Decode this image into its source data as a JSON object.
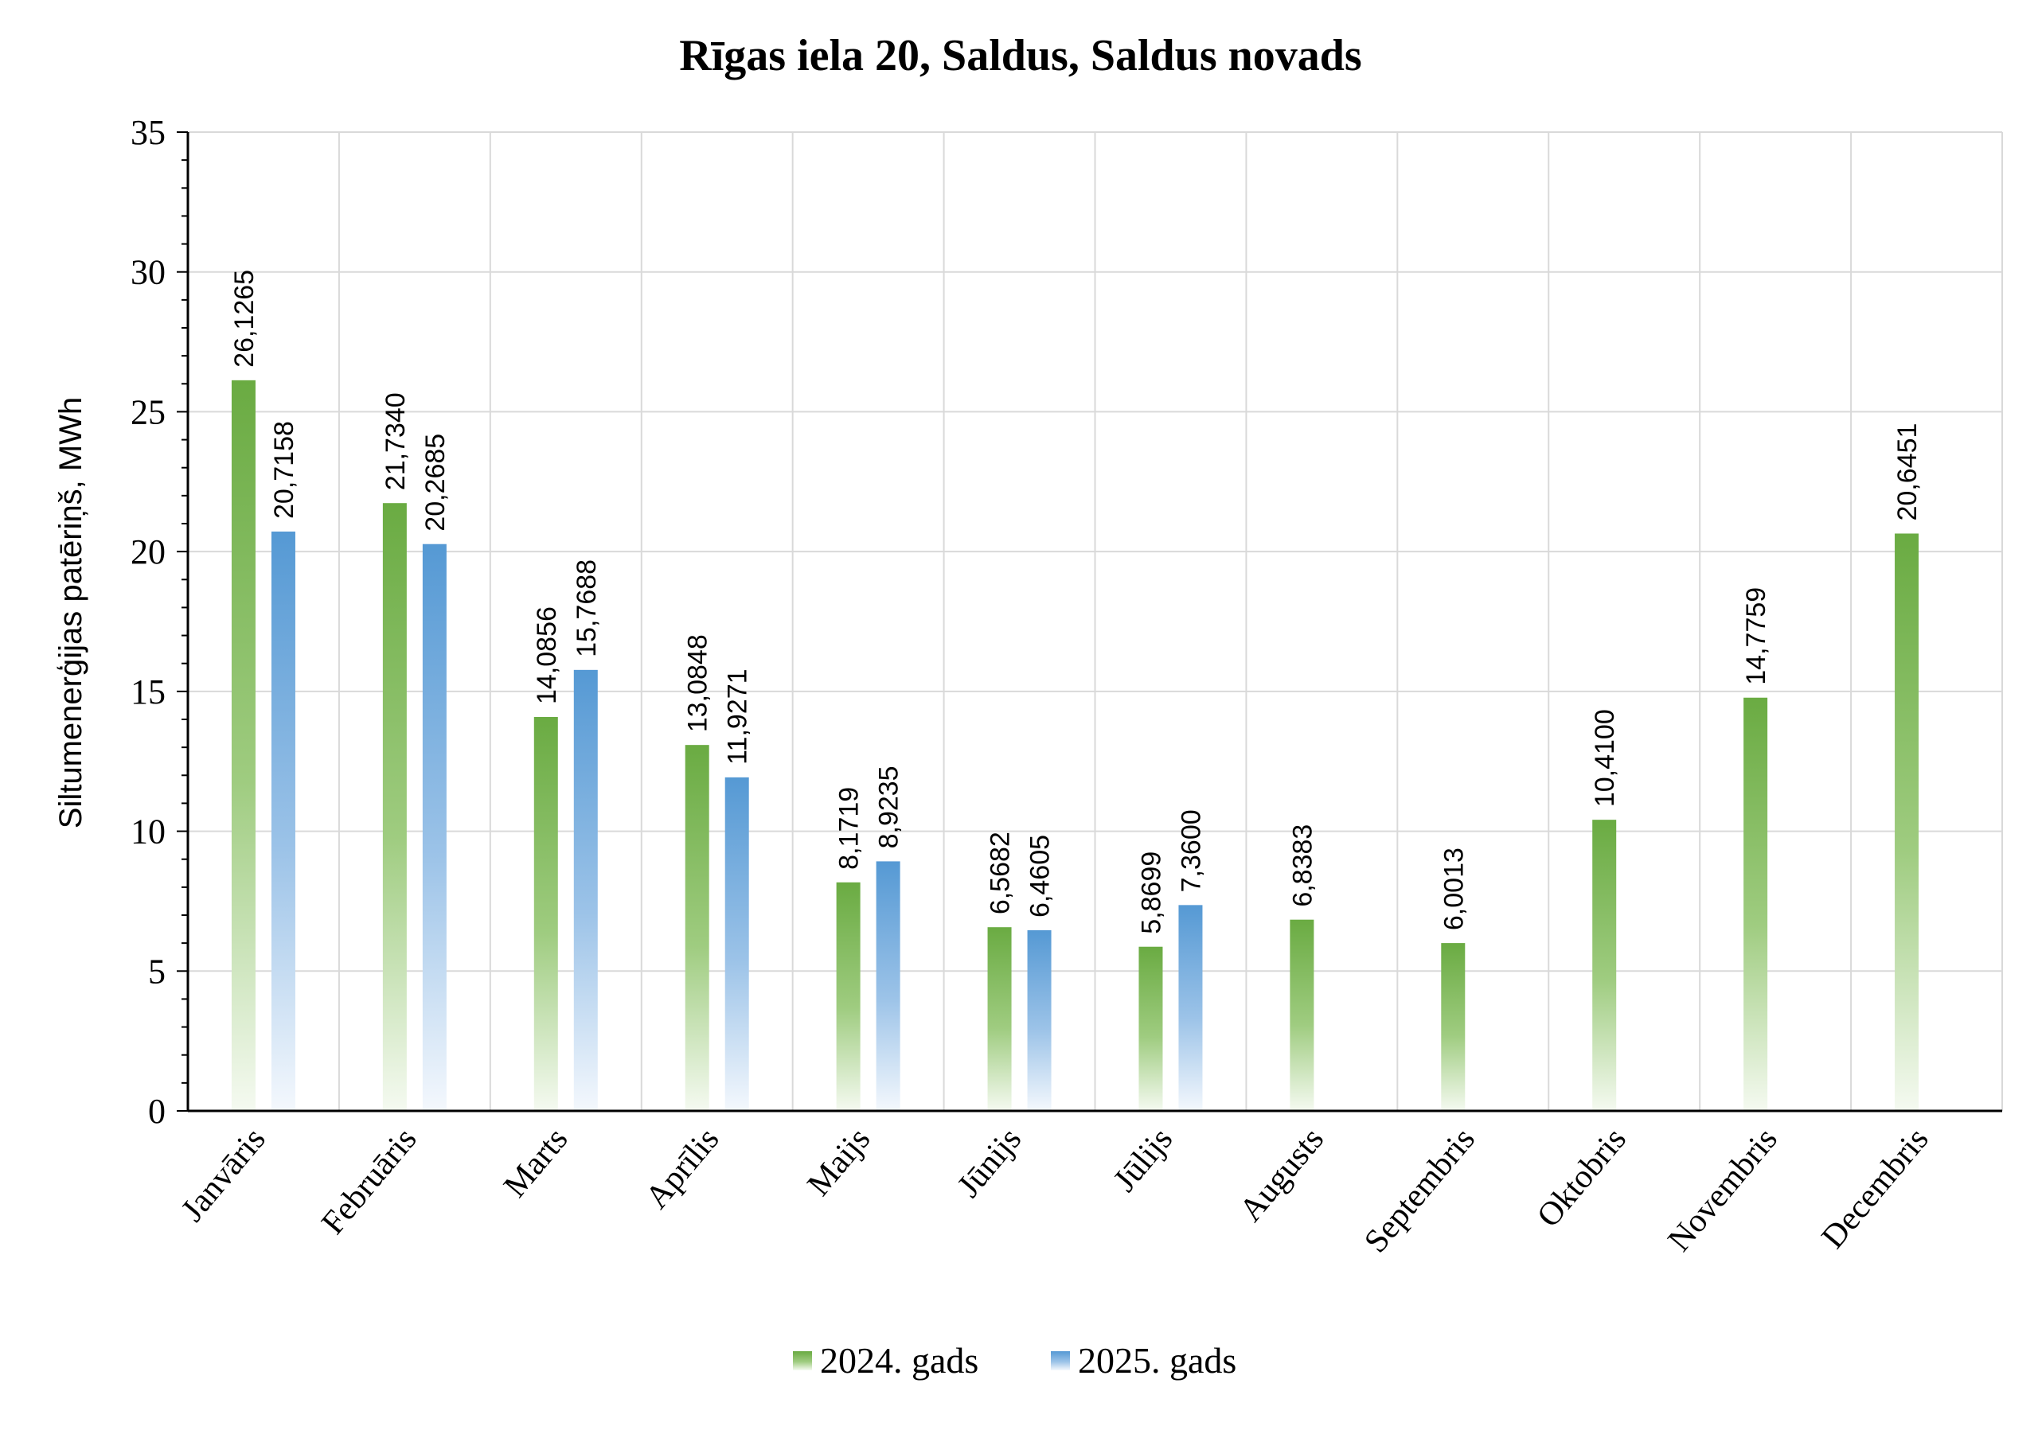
{
  "colors": {
    "series_2024": "#70ad47",
    "series_2025": "#5b9bd5",
    "grid": "#d9d9d9",
    "axis": "#000000"
  },
  "chart_data": {
    "type": "bar",
    "title": "Rīgas iela 20, Saldus, Saldus novads",
    "ylabel": "Siltumenerģijas patēriņš, MWh",
    "xlabel": "",
    "ylim": [
      0,
      35
    ],
    "yticks": [
      "0",
      "5",
      "10",
      "15",
      "20",
      "25",
      "30",
      "35"
    ],
    "grid": true,
    "legend_position": "bottom",
    "categories": [
      "Janvāris",
      "Februāris",
      "Marts",
      "Aprīlis",
      "Maijs",
      "Jūnijs",
      "Jūlijs",
      "Augusts",
      "Septembris",
      "Oktobris",
      "Novembris",
      "Decembris"
    ],
    "series": [
      {
        "name": "2024. gads",
        "values": [
          26.1265,
          21.734,
          14.0856,
          13.0848,
          8.1719,
          6.5682,
          5.8699,
          6.8383,
          6.0013,
          10.41,
          14.7759,
          20.6451
        ],
        "labels": [
          "26,1265",
          "21,7340",
          "14,0856",
          "13,0848",
          "8,1719",
          "6,5682",
          "5,8699",
          "6,8383",
          "6,0013",
          "10,4100",
          "14,7759",
          "20,6451"
        ]
      },
      {
        "name": "2025. gads",
        "values": [
          20.7158,
          20.2685,
          15.7688,
          11.9271,
          8.9235,
          6.4605,
          7.36,
          null,
          null,
          null,
          null,
          null
        ],
        "labels": [
          "20,7158",
          "20,2685",
          "15,7688",
          "11,9271",
          "8,9235",
          "6,4605",
          "7,3600",
          null,
          null,
          null,
          null,
          null
        ]
      }
    ]
  }
}
